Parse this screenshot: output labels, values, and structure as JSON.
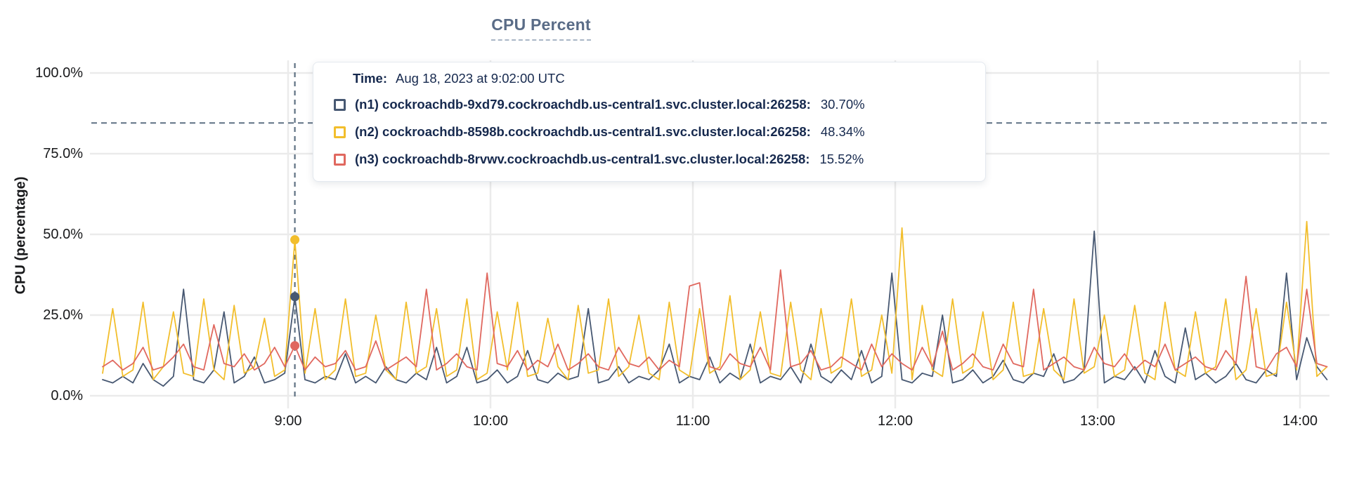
{
  "header": {
    "title": "CPU Percent"
  },
  "y_axis": {
    "label": "CPU (percentage)"
  },
  "tooltip": {
    "time_label": "Time:",
    "time_value": "Aug 18, 2023 at 9:02:00 UTC",
    "rows": [
      {
        "series": "n1",
        "color": "#475872",
        "label": "(n1) cockroachdb-9xd79.cockroachdb.us-central1.svc.cluster.local:26258:",
        "value": "30.70%"
      },
      {
        "series": "n2",
        "color": "#F2BE2C",
        "label": "(n2) cockroachdb-8598b.cockroachdb.us-central1.svc.cluster.local:26258:",
        "value": "48.34%"
      },
      {
        "series": "n3",
        "color": "#E0685F",
        "label": "(n3) cockroachdb-8rvwv.cockroachdb.us-central1.svc.cluster.local:26258:",
        "value": "15.52%"
      }
    ]
  },
  "colors": {
    "grid": "#ebebeb",
    "dashed_guides": "#5f7183",
    "axis_text": "#18191b",
    "title_text": "#5a6c87",
    "tooltip_text": "#16294e",
    "background": "#ffffff"
  },
  "chart_data": {
    "type": "line",
    "title": "CPU Percent",
    "xlabel": "",
    "ylabel": "CPU (percentage)",
    "ylim": [
      0,
      100
    ],
    "grid": true,
    "legend_position": "tooltip-overlay",
    "y_ticks": [
      {
        "value": 100,
        "label": "100.0%"
      },
      {
        "value": 75,
        "label": "75.0%"
      },
      {
        "value": 50,
        "label": "50.0%"
      },
      {
        "value": 25,
        "label": "25.0%"
      },
      {
        "value": 0,
        "label": "0.0%"
      }
    ],
    "x_ticks": [
      {
        "minutes": 60,
        "label": "9:00"
      },
      {
        "minutes": 120,
        "label": "10:00"
      },
      {
        "minutes": 180,
        "label": "11:00"
      },
      {
        "minutes": 240,
        "label": "12:00"
      },
      {
        "minutes": 300,
        "label": "13:00"
      },
      {
        "minutes": 360,
        "label": "14:00"
      }
    ],
    "x_start_minutes": 5,
    "x_step_minutes": 3,
    "x_domain_note": "minutes after 8:00, data spans ~8:05 to ~14:08 on Aug 18, 2023 UTC",
    "threshold_dashed_line_pct": 84.5,
    "crosshair": {
      "index": 19,
      "minutes": 62,
      "time_label": "9:02:00 UTC"
    },
    "highlight_points": [
      {
        "series": "n2",
        "value": 48.34
      },
      {
        "series": "n3",
        "value": 15.52
      },
      {
        "series": "n1",
        "value": 30.7
      }
    ],
    "series": [
      {
        "short": "n1",
        "name": "(n1) cockroachdb-9xd79.cockroachdb.us-central1.svc.cluster.local:26258",
        "color": "#475872",
        "values": [
          5,
          4,
          6,
          4,
          10,
          5,
          3,
          6,
          33,
          5,
          4,
          8,
          26,
          4,
          6,
          12,
          4,
          5,
          7,
          30.7,
          5,
          4,
          6,
          5,
          13,
          4,
          6,
          4,
          9,
          5,
          4,
          7,
          5,
          15,
          4,
          6,
          15,
          4,
          5,
          8,
          4,
          6,
          14,
          5,
          4,
          7,
          5,
          6,
          27,
          4,
          5,
          9,
          4,
          6,
          5,
          8,
          16,
          4,
          6,
          5,
          12,
          4,
          7,
          5,
          16,
          4,
          6,
          5,
          9,
          4,
          16,
          6,
          4,
          8,
          5,
          14,
          4,
          6,
          38,
          5,
          4,
          7,
          6,
          25,
          4,
          5,
          8,
          4,
          6,
          11,
          5,
          4,
          7,
          6,
          13,
          4,
          5,
          8,
          51,
          4,
          6,
          5,
          9,
          4,
          14,
          6,
          4,
          21,
          5,
          7,
          4,
          6,
          10,
          5,
          4,
          8,
          6,
          38,
          5,
          18,
          9,
          5
        ]
      },
      {
        "short": "n2",
        "name": "(n2) cockroachdb-8598b.cockroachdb.us-central1.svc.cluster.local:26258",
        "color": "#F2BE2C",
        "values": [
          7,
          27,
          6,
          8,
          29,
          5,
          9,
          26,
          7,
          6,
          30,
          8,
          5,
          28,
          7,
          9,
          24,
          6,
          8,
          48.3,
          7,
          27,
          5,
          8,
          30,
          6,
          7,
          25,
          8,
          5,
          29,
          7,
          9,
          27,
          6,
          8,
          30,
          5,
          7,
          26,
          8,
          29,
          6,
          7,
          24,
          9,
          5,
          28,
          7,
          8,
          30,
          6,
          9,
          25,
          7,
          5,
          29,
          8,
          6,
          27,
          7,
          9,
          31,
          5,
          8,
          26,
          7,
          6,
          29,
          8,
          5,
          27,
          7,
          9,
          30,
          6,
          8,
          25,
          7,
          52,
          5,
          28,
          8,
          6,
          30,
          7,
          9,
          26,
          5,
          8,
          29,
          6,
          7,
          27,
          8,
          5,
          30,
          7,
          9,
          25,
          6,
          8,
          28,
          7,
          5,
          29,
          8,
          6,
          26,
          7,
          9,
          30,
          5,
          8,
          27,
          6,
          7,
          29,
          8,
          54,
          6,
          9
        ]
      },
      {
        "short": "n3",
        "name": "(n3) cockroachdb-8rvwv.cockroachdb.us-central1.svc.cluster.local:26258",
        "color": "#E0685F",
        "values": [
          9,
          11,
          8,
          10,
          15,
          8,
          9,
          12,
          16,
          9,
          8,
          22,
          10,
          9,
          13,
          8,
          10,
          15,
          9,
          15.5,
          8,
          12,
          9,
          10,
          14,
          8,
          9,
          17,
          8,
          10,
          12,
          9,
          33,
          8,
          10,
          13,
          9,
          8,
          38,
          10,
          9,
          14,
          8,
          11,
          9,
          16,
          8,
          10,
          13,
          9,
          8,
          15,
          10,
          9,
          12,
          8,
          11,
          9,
          34,
          35,
          9,
          8,
          13,
          10,
          9,
          15,
          8,
          39,
          9,
          10,
          14,
          8,
          9,
          12,
          10,
          8,
          16,
          9,
          13,
          10,
          8,
          15,
          9,
          20,
          8,
          10,
          13,
          9,
          8,
          16,
          10,
          9,
          33,
          8,
          10,
          12,
          9,
          8,
          15,
          10,
          9,
          13,
          8,
          11,
          9,
          16,
          8,
          10,
          12,
          9,
          8,
          14,
          10,
          37,
          9,
          8,
          13,
          15,
          9,
          33,
          10,
          9
        ]
      }
    ]
  }
}
